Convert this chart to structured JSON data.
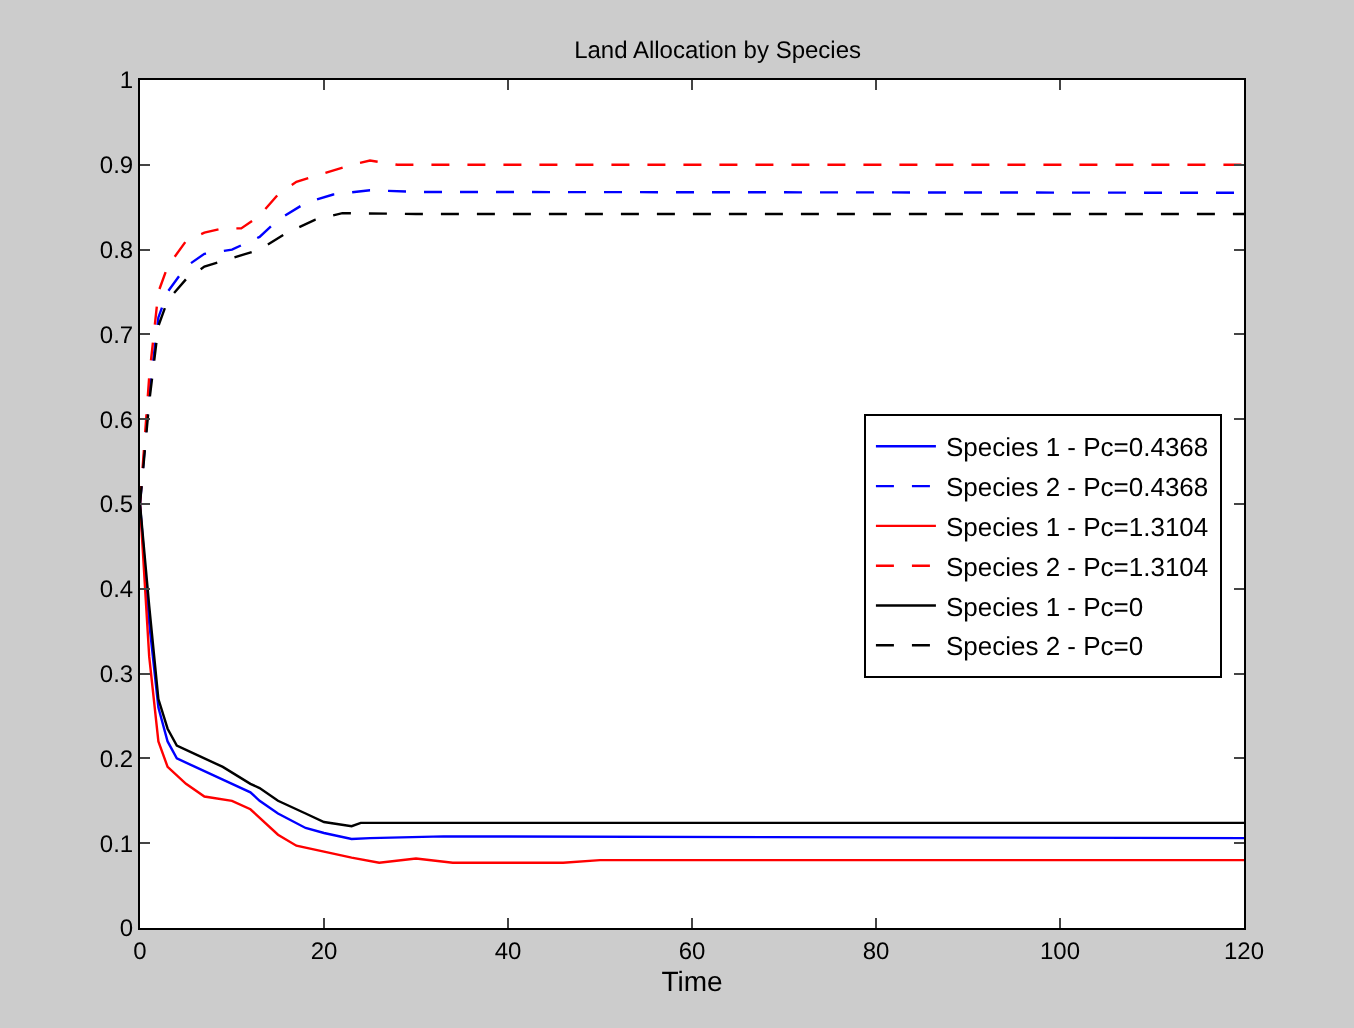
{
  "chart_data": {
    "type": "line",
    "title": "Land Allocation by Species",
    "xlabel": "Time",
    "xlim": [
      0,
      120
    ],
    "xticks": [
      0,
      20,
      40,
      60,
      80,
      100,
      120
    ],
    "ylim": [
      0,
      1
    ],
    "yticks": [
      0,
      0.1,
      0.2,
      0.3,
      0.4,
      0.5,
      0.6,
      0.7,
      0.8,
      0.9,
      1
    ],
    "grid": false,
    "legend": "right",
    "marker": "none",
    "series": [
      {
        "name": "Species 1 - Pc=0.4368",
        "color": "#0000ff",
        "line_style": "solid",
        "x": [
          0,
          1,
          2,
          3,
          4,
          6,
          9,
          12,
          13,
          15,
          18,
          20,
          23,
          25,
          33,
          120
        ],
        "values": [
          0.5,
          0.36,
          0.26,
          0.22,
          0.2,
          0.19,
          0.175,
          0.16,
          0.15,
          0.135,
          0.118,
          0.112,
          0.105,
          0.106,
          0.108,
          0.106
        ]
      },
      {
        "name": "Species 2 - Pc=0.4368",
        "color": "#0000ff",
        "line_style": "dashed",
        "x": [
          0,
          1,
          2,
          3,
          5,
          7,
          10,
          13,
          15,
          18,
          21,
          25,
          30,
          120
        ],
        "values": [
          0.5,
          0.63,
          0.72,
          0.75,
          0.78,
          0.795,
          0.8,
          0.815,
          0.835,
          0.855,
          0.865,
          0.87,
          0.868,
          0.867
        ]
      },
      {
        "name": "Species 1 - Pc=1.3104",
        "color": "#ff0000",
        "line_style": "solid",
        "x": [
          0,
          1,
          2,
          3,
          5,
          7,
          10,
          12,
          15,
          17,
          20,
          23,
          26,
          30,
          34,
          46,
          50,
          120
        ],
        "values": [
          0.5,
          0.32,
          0.22,
          0.19,
          0.17,
          0.155,
          0.15,
          0.14,
          0.11,
          0.097,
          0.09,
          0.083,
          0.077,
          0.082,
          0.077,
          0.077,
          0.08,
          0.08
        ]
      },
      {
        "name": "Species 2 - Pc=1.3104",
        "color": "#ff0000",
        "line_style": "dashed",
        "x": [
          0,
          1,
          2,
          3,
          5,
          7,
          9,
          11,
          13,
          15,
          17,
          20,
          23,
          25,
          28,
          32,
          120
        ],
        "values": [
          0.5,
          0.65,
          0.75,
          0.78,
          0.81,
          0.82,
          0.825,
          0.825,
          0.84,
          0.865,
          0.88,
          0.89,
          0.9,
          0.905,
          0.9,
          0.9,
          0.9
        ]
      },
      {
        "name": "Species 1 - Pc=0",
        "color": "#000000",
        "line_style": "solid",
        "x": [
          0,
          1,
          2,
          3,
          4,
          6,
          9,
          12,
          13,
          15,
          18,
          20,
          23,
          24,
          120
        ],
        "values": [
          0.5,
          0.38,
          0.27,
          0.235,
          0.215,
          0.205,
          0.19,
          0.17,
          0.165,
          0.15,
          0.135,
          0.125,
          0.12,
          0.124,
          0.124
        ]
      },
      {
        "name": "Species 2 - Pc=0",
        "color": "#000000",
        "line_style": "dashed",
        "x": [
          0,
          1,
          2,
          3,
          5,
          7,
          10,
          13,
          16,
          19,
          22,
          30,
          120
        ],
        "values": [
          0.5,
          0.62,
          0.71,
          0.74,
          0.765,
          0.78,
          0.79,
          0.8,
          0.82,
          0.835,
          0.843,
          0.842,
          0.842
        ]
      }
    ]
  }
}
